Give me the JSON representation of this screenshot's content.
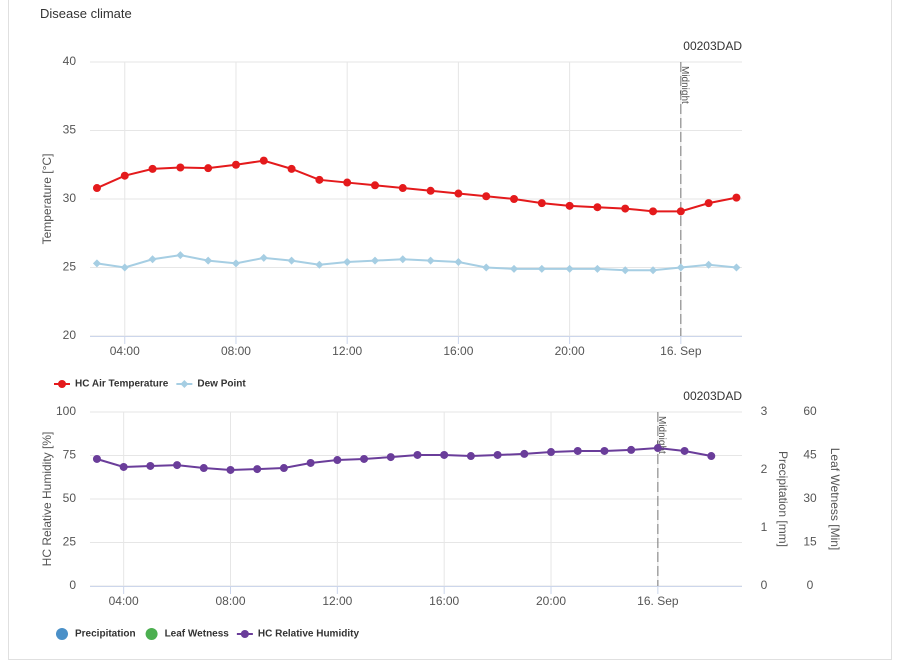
{
  "title": "Disease climate",
  "chart_data": [
    {
      "type": "line",
      "credit": "00203DAD",
      "y_label": "Temperature [°C]",
      "x": [
        3,
        4,
        5,
        6,
        7,
        8,
        9,
        10,
        11,
        12,
        13,
        14,
        15,
        16,
        17,
        18,
        19,
        20,
        21,
        22,
        23,
        24,
        25,
        26
      ],
      "xlim": [
        2.75,
        26.2
      ],
      "xticks": [
        {
          "value": 4,
          "label": "04:00"
        },
        {
          "value": 8,
          "label": "08:00"
        },
        {
          "value": 12,
          "label": "12:00"
        },
        {
          "value": 16,
          "label": "16:00"
        },
        {
          "value": 20,
          "label": "20:00"
        },
        {
          "value": 24,
          "label": "16. Sep"
        }
      ],
      "ylim": [
        20,
        40
      ],
      "yticks": [
        20,
        25,
        30,
        35,
        40
      ],
      "grid": true,
      "plot_line": {
        "value": 24,
        "label": "Midnight"
      },
      "series": [
        {
          "name": "HC Air Temperature",
          "color": "#e41a1c",
          "marker": "circle",
          "values": [
            30.8,
            31.7,
            32.2,
            32.3,
            32.25,
            32.5,
            32.8,
            32.2,
            31.4,
            31.2,
            31.0,
            30.8,
            30.6,
            30.4,
            30.2,
            30.0,
            29.7,
            29.5,
            29.4,
            29.3,
            29.1,
            29.1,
            29.7,
            30.1
          ]
        },
        {
          "name": "Dew Point",
          "color": "#a6cee3",
          "marker": "diamond",
          "values": [
            25.3,
            25.0,
            25.6,
            25.9,
            25.5,
            25.3,
            25.7,
            25.5,
            25.2,
            25.4,
            25.5,
            25.6,
            25.5,
            25.4,
            25.0,
            24.9,
            24.9,
            24.9,
            24.9,
            24.8,
            24.8,
            25.0,
            25.2,
            25.0
          ]
        }
      ]
    },
    {
      "type": "line",
      "credit": "00203DAD",
      "y_label": "HC Relative Humidity [%]",
      "x": [
        3,
        4,
        5,
        6,
        7,
        8,
        9,
        10,
        11,
        12,
        13,
        14,
        15,
        16,
        17,
        18,
        19,
        20,
        21,
        22,
        23,
        24,
        25,
        26
      ],
      "xlim": [
        2.74,
        27.15
      ],
      "xticks": [
        {
          "value": 4,
          "label": "04:00"
        },
        {
          "value": 8,
          "label": "08:00"
        },
        {
          "value": 12,
          "label": "12:00"
        },
        {
          "value": 16,
          "label": "16:00"
        },
        {
          "value": 20,
          "label": "20:00"
        },
        {
          "value": 24,
          "label": "16. Sep"
        }
      ],
      "ylim": [
        0,
        100
      ],
      "yticks": [
        0,
        25,
        50,
        75,
        100
      ],
      "grid": true,
      "y2_label": "Precipitation [mm]",
      "y2lim": [
        0,
        3
      ],
      "y2ticks": [
        0,
        1,
        2,
        3
      ],
      "y3_label": "Leaf Wetness [Min]",
      "y3lim": [
        0,
        60
      ],
      "y3ticks": [
        0,
        15,
        30,
        45,
        60
      ],
      "plot_line": {
        "value": 24,
        "label": "Midnight"
      },
      "series": [
        {
          "name": "Precipitation",
          "color": "#4a90c8",
          "axis": "y2"
        },
        {
          "name": "Leaf Wetness",
          "color": "#4caf50",
          "axis": "y3"
        },
        {
          "name": "HC Relative Humidity",
          "color": "#6a3d9a",
          "marker": "circle",
          "values": [
            73,
            68.4,
            69,
            69.5,
            67.8,
            66.7,
            67.2,
            67.8,
            70.7,
            72.4,
            73,
            74.1,
            75.3,
            75.3,
            74.7,
            75.3,
            75.9,
            77,
            77.6,
            77.6,
            78.2,
            79.3,
            77.6,
            74.7
          ]
        }
      ]
    }
  ]
}
